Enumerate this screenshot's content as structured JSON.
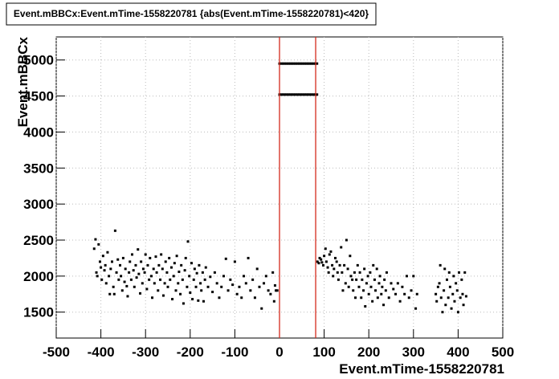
{
  "chart_data": {
    "type": "scatter",
    "title": "Event.mBBCx:Event.mTime-1558220781 {abs(Event.mTime-1558220781)<420}",
    "x_label": "Event.mTime-1558220781",
    "y_label": "Event.mBBCx",
    "xlim": [
      -500,
      500
    ],
    "ylim": [
      1140,
      5320
    ],
    "xticks": [
      -500,
      -400,
      -300,
      -200,
      -100,
      0,
      100,
      200,
      300,
      400,
      500
    ],
    "yticks": [
      1500,
      2000,
      2500,
      3000,
      3500,
      4000,
      4500,
      5000
    ],
    "grid": true,
    "color": "#000000",
    "vlines": [
      0,
      81
    ],
    "vline_color": "#d42a1c",
    "x": [
      -415,
      -412,
      -410,
      -408,
      -405,
      -402,
      -400,
      -398,
      -395,
      -392,
      -390,
      -388,
      -385,
      -382,
      -380,
      -378,
      -375,
      -372,
      -370,
      -368,
      -365,
      -362,
      -360,
      -357,
      -355,
      -352,
      -350,
      -347,
      -345,
      -342,
      -340,
      -337,
      -335,
      -332,
      -330,
      -327,
      -325,
      -322,
      -320,
      -317,
      -315,
      -312,
      -310,
      -307,
      -305,
      -302,
      -300,
      -297,
      -295,
      -292,
      -290,
      -287,
      -285,
      -282,
      -280,
      -277,
      -275,
      -272,
      -270,
      -267,
      -265,
      -262,
      -260,
      -257,
      -255,
      -252,
      -250,
      -247,
      -245,
      -242,
      -240,
      -237,
      -235,
      -232,
      -230,
      -227,
      -225,
      -222,
      -220,
      -217,
      -215,
      -212,
      -210,
      -207,
      -205,
      -202,
      -200,
      -197,
      -195,
      -192,
      -190,
      -187,
      -185,
      -182,
      -180,
      -177,
      -175,
      -172,
      -170,
      -167,
      -165,
      -160,
      -155,
      -150,
      -145,
      -140,
      -135,
      -130,
      -125,
      -120,
      -115,
      -110,
      -105,
      -100,
      -95,
      -90,
      -85,
      -80,
      -75,
      -70,
      -65,
      -60,
      -55,
      -50,
      -45,
      -40,
      -35,
      -30,
      -25,
      -20,
      -15,
      -12,
      -10,
      -8,
      -5,
      85,
      88,
      90,
      93,
      95,
      98,
      100,
      103,
      105,
      108,
      110,
      112,
      115,
      118,
      120,
      122,
      125,
      128,
      130,
      132,
      135,
      138,
      140,
      142,
      145,
      148,
      150,
      153,
      155,
      158,
      160,
      163,
      165,
      168,
      170,
      172,
      175,
      178,
      180,
      183,
      185,
      188,
      190,
      192,
      195,
      198,
      200,
      203,
      205,
      208,
      210,
      213,
      215,
      218,
      220,
      223,
      225,
      228,
      230,
      233,
      235,
      238,
      240,
      245,
      250,
      255,
      260,
      265,
      270,
      275,
      280,
      285,
      290,
      295,
      300,
      305,
      308,
      350,
      352,
      355,
      358,
      360,
      362,
      365,
      368,
      370,
      372,
      375,
      378,
      380,
      382,
      385,
      388,
      390,
      392,
      395,
      398,
      400,
      402,
      405,
      408,
      410,
      412,
      415,
      418,
      0,
      4,
      8,
      12,
      16,
      20,
      24,
      28,
      32,
      36,
      40,
      44,
      48,
      52,
      56,
      60,
      64,
      68,
      72,
      76,
      80,
      84,
      0,
      4,
      8,
      12,
      16,
      20,
      24,
      28,
      32,
      36,
      40,
      44,
      48,
      52,
      56,
      60,
      64,
      68,
      72,
      76,
      80,
      84
    ],
    "y": [
      2380,
      2510,
      2050,
      2000,
      2440,
      2200,
      2120,
      1950,
      2280,
      2080,
      2150,
      1900,
      2330,
      2000,
      1750,
      2100,
      2200,
      1850,
      1750,
      2630,
      2050,
      2230,
      1950,
      2150,
      2000,
      1800,
      2250,
      1920,
      2100,
      1860,
      1720,
      2050,
      2200,
      1950,
      2300,
      2080,
      1850,
      2150,
      1980,
      2370,
      2030,
      1760,
      2200,
      1900,
      2100,
      2050,
      2300,
      1820,
      2150,
      1950,
      2250,
      2000,
      1700,
      2100,
      1900,
      2270,
      2050,
      1800,
      2150,
      1950,
      2300,
      2100,
      1730,
      1900,
      2200,
      2050,
      1850,
      2250,
      1950,
      2120,
      1680,
      2000,
      2180,
      1800,
      2280,
      1900,
      2060,
      1750,
      2150,
      1950,
      1620,
      2080,
      2250,
      1850,
      2480,
      2000,
      1770,
      2180,
      1680,
      1950,
      2100,
      1850,
      2040,
      1660,
      2150,
      1900,
      1800,
      2050,
      1650,
      1950,
      2120,
      1850,
      1990,
      1780,
      2050,
      1900,
      1700,
      1850,
      2000,
      2240,
      1800,
      1950,
      1880,
      2200,
      1750,
      1850,
      1700,
      2000,
      1900,
      2250,
      1800,
      1950,
      1700,
      2100,
      1850,
      1550,
      1900,
      2000,
      1800,
      1750,
      2050,
      1650,
      1870,
      1800,
      1800,
      2200,
      2180,
      2250,
      2230,
      2190,
      2150,
      2280,
      2380,
      2200,
      2120,
      2050,
      2300,
      2340,
      2150,
      2000,
      2100,
      2250,
      2200,
      2050,
      1950,
      2150,
      2400,
      2050,
      1800,
      2150,
      1900,
      2500,
      2100,
      1850,
      2280,
      2000,
      1950,
      1800,
      2050,
      1700,
      1950,
      2150,
      1850,
      2050,
      1700,
      1950,
      1800,
      2100,
      1580,
      1900,
      2000,
      1750,
      2050,
      1850,
      1650,
      2150,
      1950,
      1800,
      2100,
      1700,
      1900,
      2000,
      1750,
      1850,
      1600,
      1950,
      1800,
      2050,
      1700,
      1900,
      1820,
      1750,
      1900,
      1650,
      1850,
      1750,
      2000,
      1700,
      1800,
      2000,
      1550,
      1750,
      1750,
      1650,
      1850,
      1900,
      2150,
      1700,
      1500,
      1800,
      2100,
      1600,
      1950,
      1700,
      2050,
      1850,
      1550,
      1750,
      2000,
      1650,
      1900,
      1800,
      1500,
      2050,
      1700,
      1950,
      1750,
      1600,
      2050,
      1720,
      4950,
      4950,
      4950,
      4950,
      4950,
      4950,
      4950,
      4950,
      4950,
      4950,
      4950,
      4950,
      4950,
      4950,
      4950,
      4950,
      4950,
      4950,
      4950,
      4950,
      4950,
      4950,
      4520,
      4520,
      4520,
      4520,
      4520,
      4520,
      4520,
      4520,
      4520,
      4520,
      4520,
      4520,
      4520,
      4520,
      4520,
      4520,
      4520,
      4520,
      4520,
      4520,
      4520,
      4520
    ]
  }
}
